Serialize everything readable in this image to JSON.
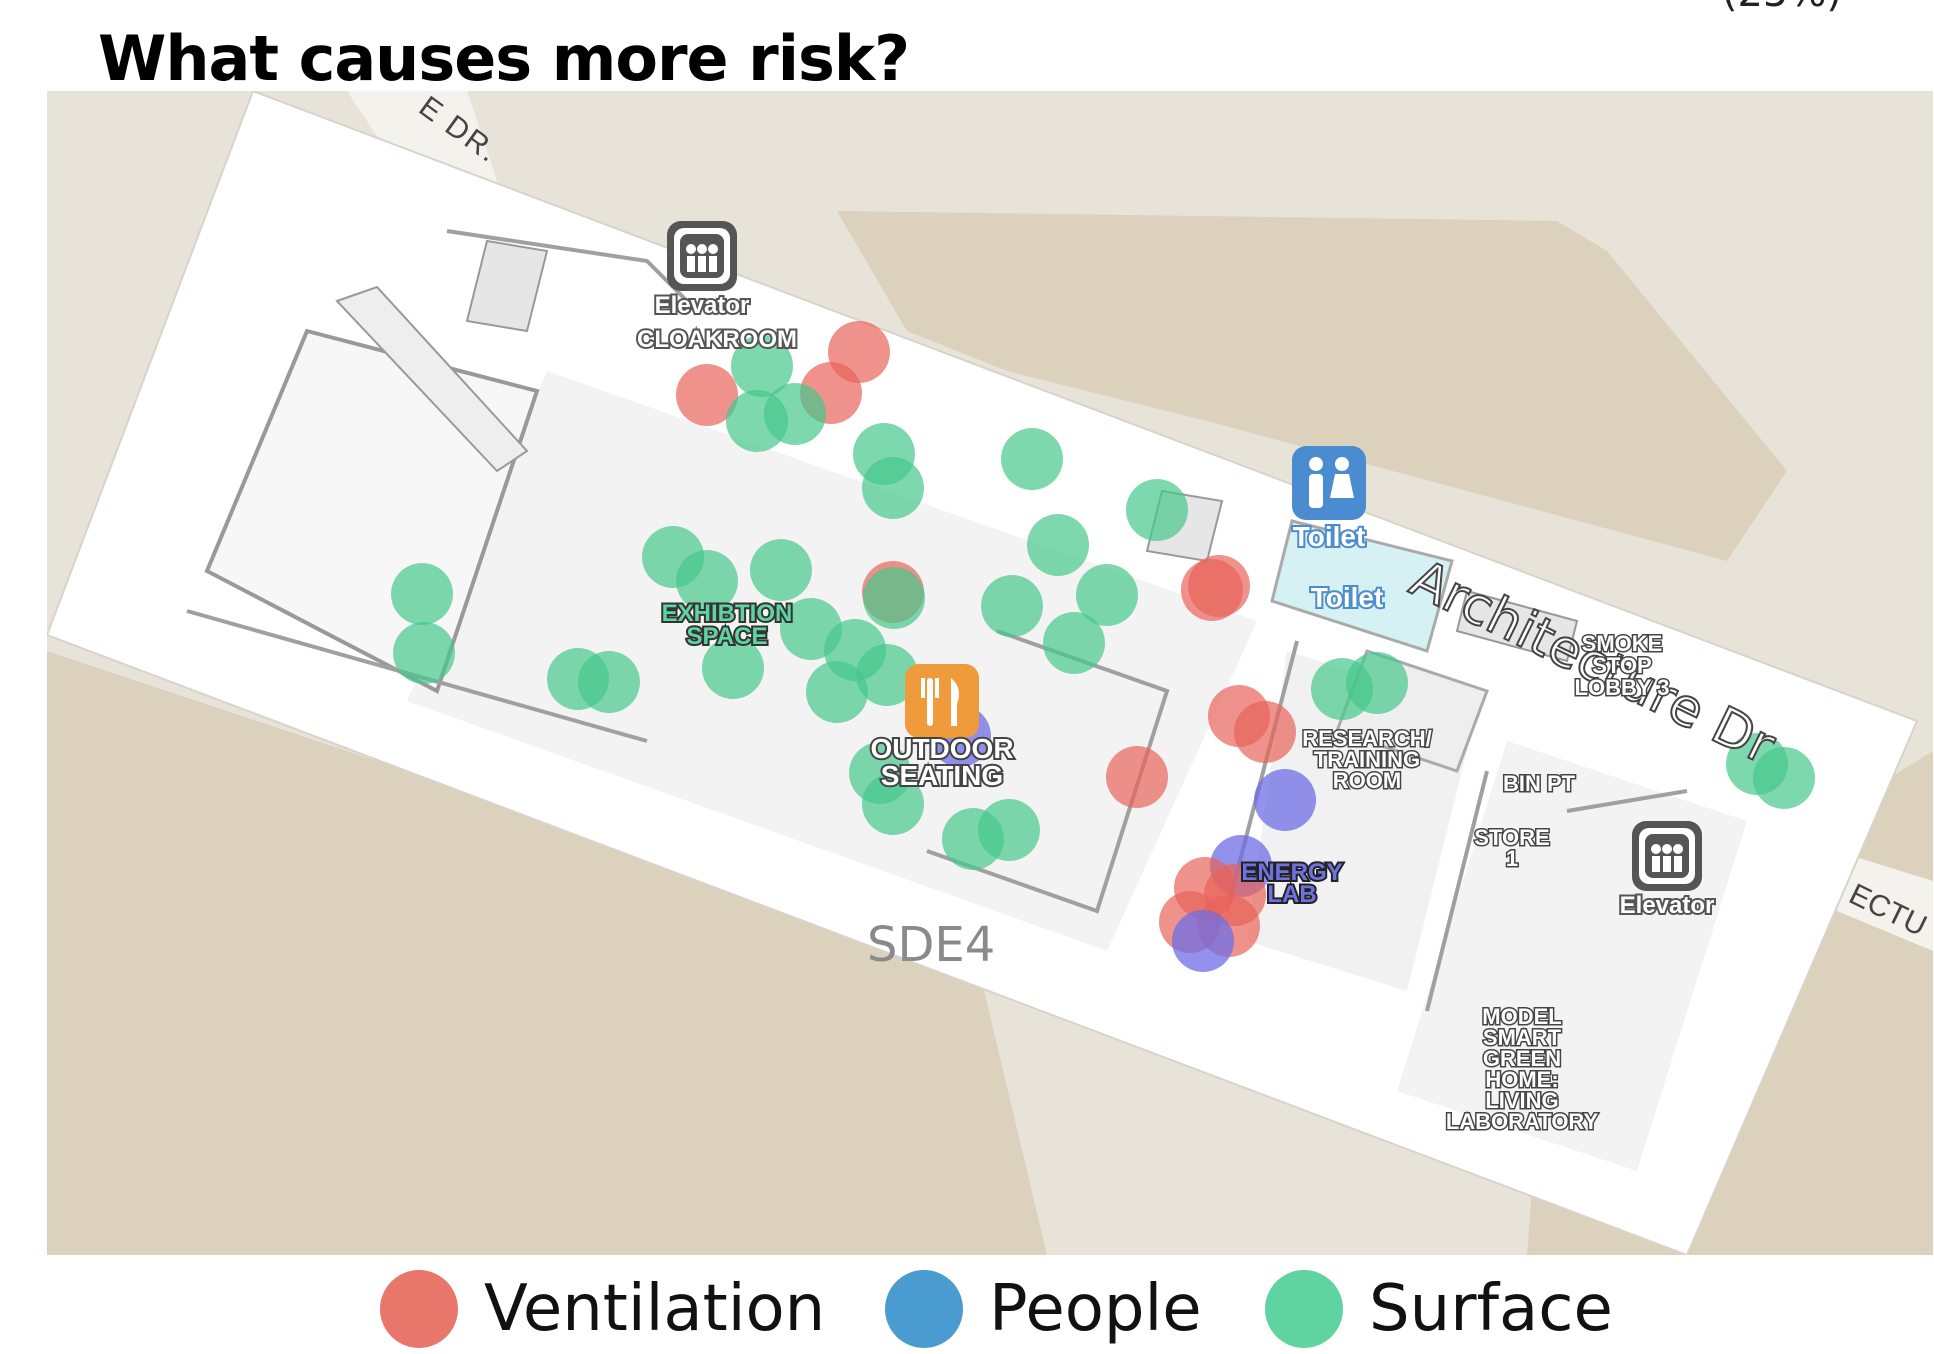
{
  "title": "What causes more risk?",
  "corner_text": "(25%)",
  "map": {
    "street_labels": {
      "top": "E DR.",
      "middle": "Architecture Dr",
      "right": "ECTU"
    },
    "building_label": "SDE4",
    "pois": {
      "elevator_top": "Elevator",
      "elevator_right": "Elevator",
      "toilet_icon": "Toilet",
      "toilet_room": "Toilet",
      "cloakroom": "CLOAKROOM",
      "exhibition": [
        "EXHIBTION",
        "SPACE"
      ],
      "outdoor": [
        "OUTDOOR",
        "SEATING"
      ],
      "research": [
        "RESEARCH/",
        "TRAINING",
        "ROOM"
      ],
      "smoke": [
        "SMOKE",
        "STOP",
        "LOBBY 3"
      ],
      "bin": "BIN PT",
      "store": [
        "STORE",
        "1"
      ],
      "energy": [
        "ENERGY",
        "LAB"
      ],
      "model": [
        "MODEL",
        "SMART",
        "GREEN",
        "HOME:",
        "LIVING",
        "LABORATORY"
      ]
    },
    "icons": [
      "elevator-icon",
      "elevator-icon",
      "toilet-icon",
      "restaurant-icon"
    ]
  },
  "legend": [
    {
      "label": "Ventilation",
      "color": "#e8766a"
    },
    {
      "label": "People",
      "color": "#4a9bd0"
    },
    {
      "label": "Surface",
      "color": "#5fd3a0"
    }
  ]
}
